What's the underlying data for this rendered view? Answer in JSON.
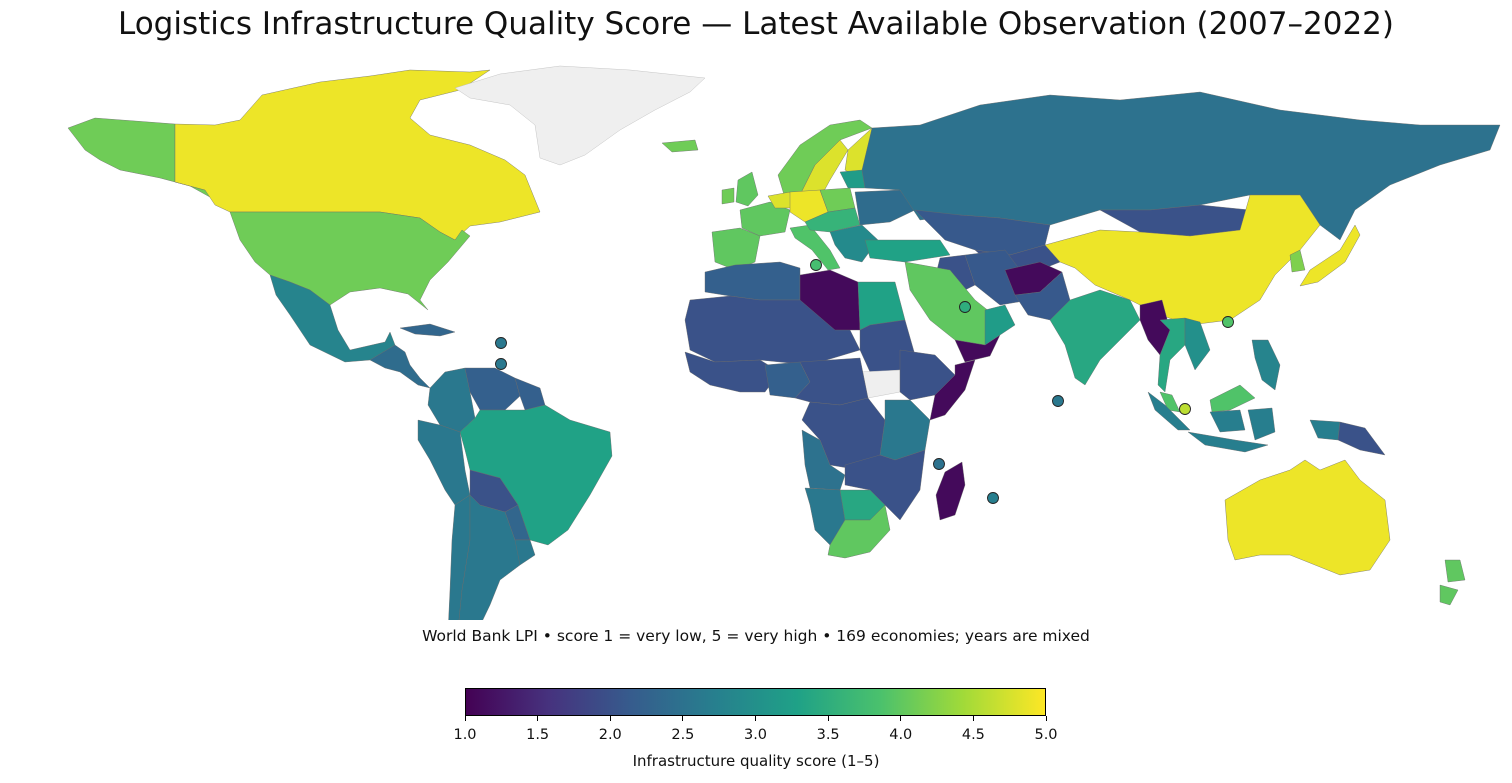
{
  "title": "Logistics Infrastructure Quality Score — Latest Available Observation (2007–2022)",
  "subtitle": "World Bank LPI • score 1 = very low, 5 = very high • 169 economies; years are mixed",
  "colorbar": {
    "label": "Infrastructure quality score (1–5)",
    "min": 1.0,
    "max": 5.0,
    "ticks": [
      "1.0",
      "1.5",
      "2.0",
      "2.5",
      "3.0",
      "3.5",
      "4.0",
      "4.5",
      "5.0"
    ],
    "colormap": "viridis",
    "stops": [
      "#440154",
      "#46327e",
      "#365c8d",
      "#277f8e",
      "#1fa187",
      "#4ac16d",
      "#a0da39",
      "#fde725"
    ]
  },
  "chart_data": {
    "type": "choropleth",
    "projection": "equirectangular",
    "nodata_color": "#efefef",
    "regions": [
      {
        "name": "Canada",
        "value": 4.9
      },
      {
        "name": "Alaska (USA)",
        "value": 4.1
      },
      {
        "name": "United States",
        "value": 4.1
      },
      {
        "name": "Greenland",
        "value": null
      },
      {
        "name": "Mexico",
        "value": 2.8
      },
      {
        "name": "Central America",
        "value": 2.4
      },
      {
        "name": "Cuba",
        "value": 2.3
      },
      {
        "name": "Colombia",
        "value": 2.6
      },
      {
        "name": "Venezuela",
        "value": 2.2
      },
      {
        "name": "Guianas",
        "value": 2.2
      },
      {
        "name": "Ecuador / Peru",
        "value": 2.6
      },
      {
        "name": "Brazil",
        "value": 3.3
      },
      {
        "name": "Bolivia",
        "value": 2.0
      },
      {
        "name": "Paraguay",
        "value": 2.3
      },
      {
        "name": "Chile",
        "value": 2.6
      },
      {
        "name": "Argentina",
        "value": 2.6
      },
      {
        "name": "Uruguay",
        "value": 2.6
      },
      {
        "name": "Iberia",
        "value": 4.0
      },
      {
        "name": "France",
        "value": 4.0
      },
      {
        "name": "United Kingdom",
        "value": 4.0
      },
      {
        "name": "Ireland",
        "value": 4.1
      },
      {
        "name": "Iceland",
        "value": 4.1
      },
      {
        "name": "Norway",
        "value": 4.1
      },
      {
        "name": "Sweden",
        "value": 4.8
      },
      {
        "name": "Finland",
        "value": 4.8
      },
      {
        "name": "Germany",
        "value": 4.9
      },
      {
        "name": "Benelux",
        "value": 4.8
      },
      {
        "name": "Italy",
        "value": 3.9
      },
      {
        "name": "Poland",
        "value": 4.1
      },
      {
        "name": "Central Europe",
        "value": 3.6
      },
      {
        "name": "Balkans",
        "value": 2.9
      },
      {
        "name": "Ukraine",
        "value": 2.4
      },
      {
        "name": "Baltics",
        "value": 3.2
      },
      {
        "name": "Turkey",
        "value": 3.3
      },
      {
        "name": "Russia",
        "value": 2.5
      },
      {
        "name": "Kazakhstan",
        "value": 2.1
      },
      {
        "name": "Central Asia",
        "value": 2.0
      },
      {
        "name": "Mongolia",
        "value": 2.0
      },
      {
        "name": "China",
        "value": 4.9
      },
      {
        "name": "Japan",
        "value": 4.9
      },
      {
        "name": "South Korea",
        "value": 4.2
      },
      {
        "name": "Afghanistan",
        "value": 1.1
      },
      {
        "name": "Iran",
        "value": 2.1
      },
      {
        "name": "Iraq",
        "value": 2.0
      },
      {
        "name": "Saudi Arabia",
        "value": 4.0
      },
      {
        "name": "Yemen",
        "value": 1.1
      },
      {
        "name": "Oman",
        "value": 3.2
      },
      {
        "name": "Pakistan",
        "value": 2.1
      },
      {
        "name": "India",
        "value": 3.4
      },
      {
        "name": "Myanmar",
        "value": 1.1
      },
      {
        "name": "Thailand",
        "value": 3.4
      },
      {
        "name": "Vietnam",
        "value": 3.0
      },
      {
        "name": "Malaysia",
        "value": 3.9
      },
      {
        "name": "Philippines",
        "value": 2.8
      },
      {
        "name": "Indonesia",
        "value": 2.7
      },
      {
        "name": "Papua New Guinea",
        "value": 2.0
      },
      {
        "name": "Australia",
        "value": 4.9
      },
      {
        "name": "New Zealand",
        "value": 4.0
      },
      {
        "name": "Sahel / North Africa",
        "value": 2.0
      },
      {
        "name": "Morocco / Algeria",
        "value": 2.2
      },
      {
        "name": "Libya",
        "value": 1.1
      },
      {
        "name": "Egypt",
        "value": 3.3
      },
      {
        "name": "Sudan",
        "value": 2.0
      },
      {
        "name": "South Sudan",
        "value": null
      },
      {
        "name": "Ethiopia",
        "value": 2.0
      },
      {
        "name": "Somalia",
        "value": 1.1
      },
      {
        "name": "West Africa",
        "value": 2.0
      },
      {
        "name": "Nigeria",
        "value": 2.2
      },
      {
        "name": "Central Africa",
        "value": 2.0
      },
      {
        "name": "DR Congo",
        "value": 2.0
      },
      {
        "name": "Kenya / Tanzania",
        "value": 2.6
      },
      {
        "name": "Angola",
        "value": 2.5
      },
      {
        "name": "Namibia",
        "value": 2.6
      },
      {
        "name": "Botswana / Zimbabwe",
        "value": 3.4
      },
      {
        "name": "South Africa",
        "value": 4.0
      },
      {
        "name": "Mozambique / Zambia",
        "value": 2.0
      },
      {
        "name": "Madagascar",
        "value": 1.1
      }
    ],
    "small_states": [
      {
        "name": "Malta",
        "value": 3.8
      },
      {
        "name": "Bahrain / Qatar",
        "value": 3.5
      },
      {
        "name": "Hong Kong",
        "value": 3.9
      },
      {
        "name": "Singapore",
        "value": 4.6
      },
      {
        "name": "Maldives",
        "value": 2.6
      },
      {
        "name": "Comoros",
        "value": 2.5
      },
      {
        "name": "Mauritius",
        "value": 2.7
      },
      {
        "name": "Antigua",
        "value": 2.6
      },
      {
        "name": "Barbados",
        "value": 2.6
      }
    ]
  }
}
